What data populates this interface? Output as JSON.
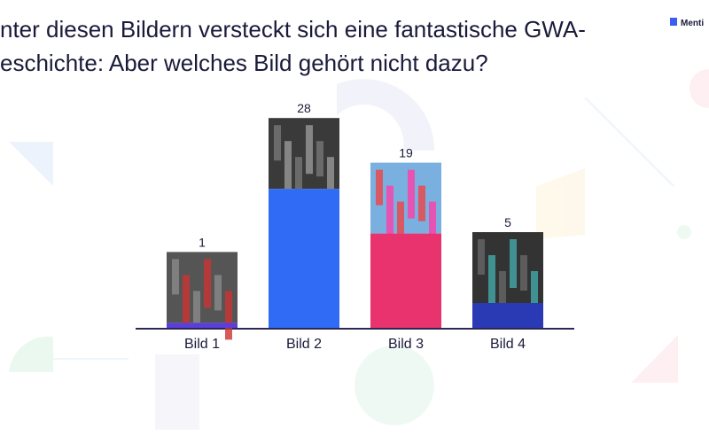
{
  "brand": "Menti",
  "chart_data": {
    "type": "bar",
    "title_lines": [
      "nter diesen Bildern versteckt sich eine fantastische GWA-",
      "eschichte: Aber welches Bild gehört nicht dazu?"
    ],
    "categories": [
      "Bild 1",
      "Bild 2",
      "Bild 3",
      "Bild 4"
    ],
    "values": [
      1,
      28,
      19,
      5
    ],
    "colors": [
      "#5b3fd9",
      "#2f6bf5",
      "#e8336e",
      "#2a3ab5"
    ]
  }
}
